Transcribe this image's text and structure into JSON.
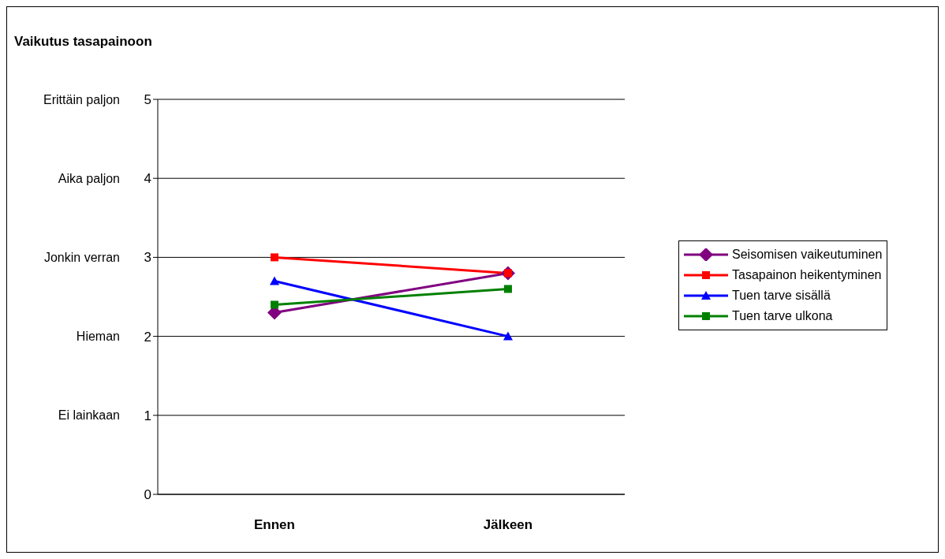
{
  "chart_data": {
    "type": "line",
    "title": "Vaikutus tasapainoon",
    "categories": [
      "Ennen",
      "Jälkeen"
    ],
    "series": [
      {
        "name": "Seisomisen vaikeutuminen",
        "color": "#800080",
        "marker": "diamond",
        "values": [
          2.3,
          2.8
        ]
      },
      {
        "name": "Tasapainon heikentyminen",
        "color": "#ff0000",
        "marker": "square",
        "values": [
          3.0,
          2.8
        ]
      },
      {
        "name": "Tuen tarve sisällä",
        "color": "#0000ff",
        "marker": "triangle",
        "values": [
          2.7,
          2.0
        ]
      },
      {
        "name": "Tuen tarve ulkona",
        "color": "#008000",
        "marker": "square",
        "values": [
          2.4,
          2.6
        ]
      }
    ],
    "ylim": [
      0,
      5
    ],
    "yticks": [
      0,
      1,
      2,
      3,
      4,
      5
    ],
    "annotations": [
      "Ei lainkaan",
      "Hieman",
      "Jonkin verran",
      "Aika paljon",
      "Erittäin paljon"
    ],
    "grid": "y",
    "legend": "right",
    "line_style": "solid"
  }
}
